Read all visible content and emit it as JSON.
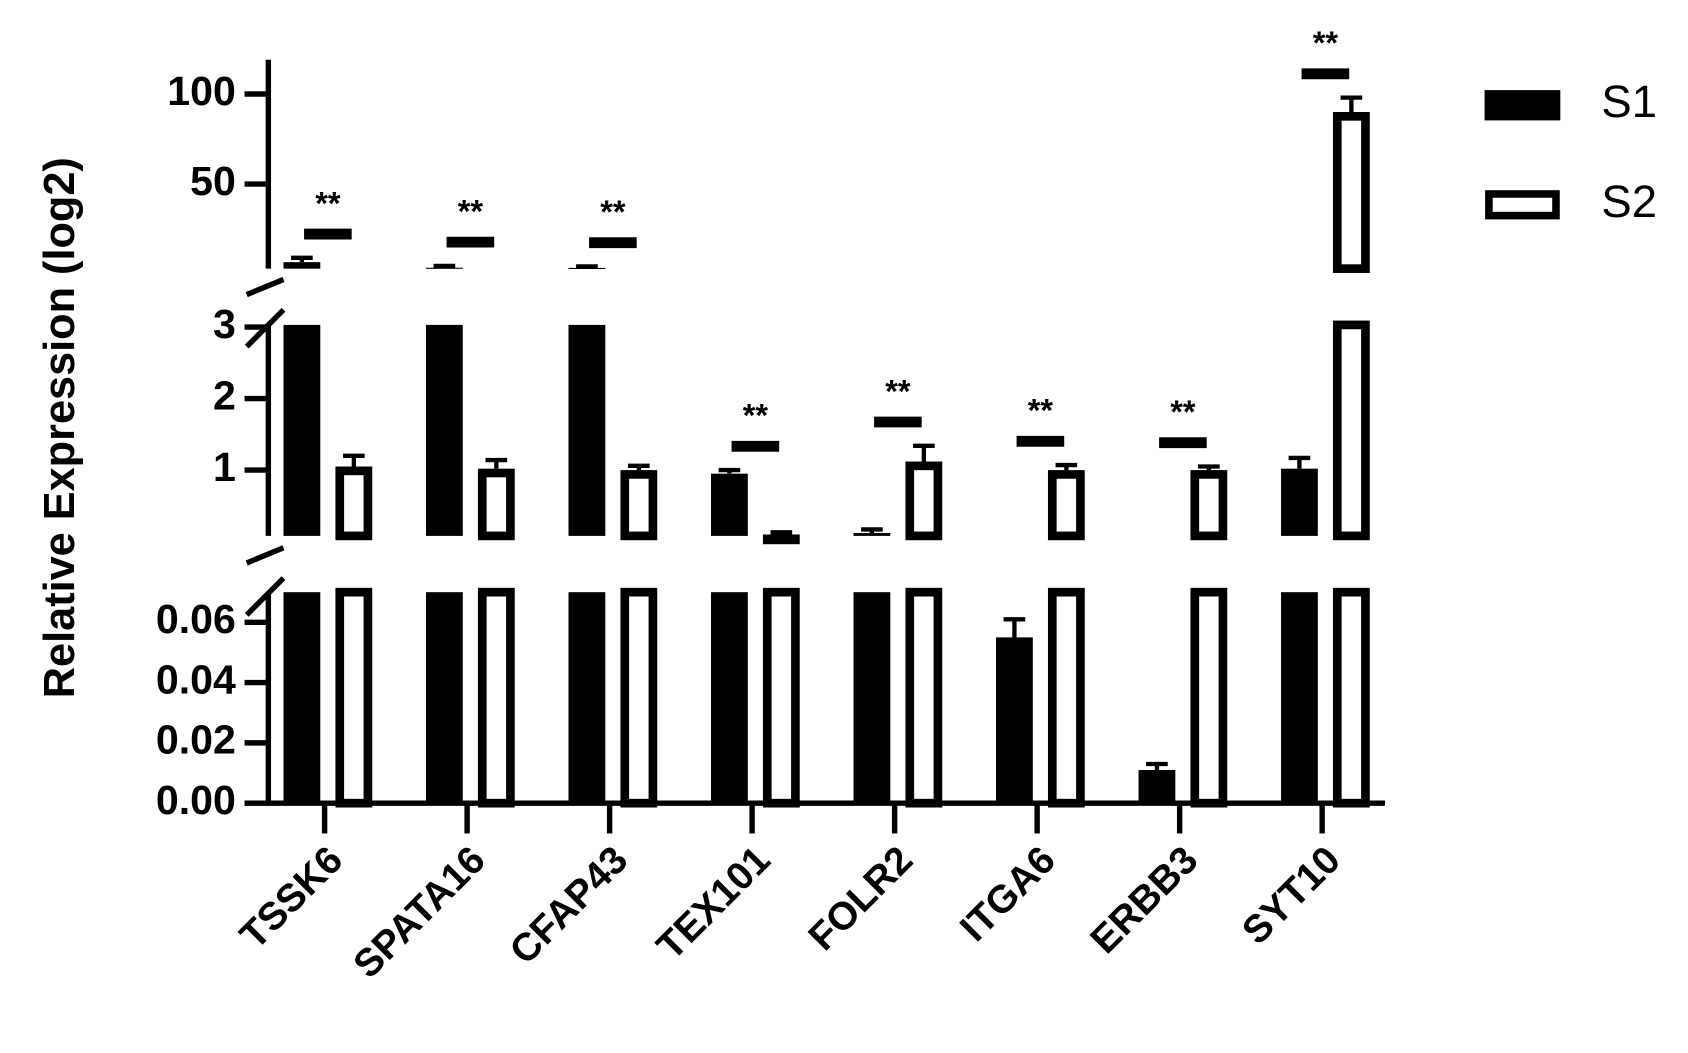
{
  "chart_data": {
    "type": "bar",
    "y_label": "Relative Expression (log2)",
    "categories": [
      "TSSK6",
      "SPATA16",
      "CFAP43",
      "TEX101",
      "FOLR2",
      "ITGA6",
      "ERBB3",
      "SYT10"
    ],
    "series": [
      {
        "name": "S1",
        "color": "#000000",
        "fill": "solid",
        "values": [
          6.6,
          3.5,
          3.4,
          0.95,
          0.12,
          0.055,
          0.011,
          1.02
        ],
        "errors": [
          2.4,
          1.0,
          0.8,
          0.05,
          0.05,
          0.006,
          0.002,
          0.15
        ]
      },
      {
        "name": "S2",
        "color": "#000000",
        "fill": "open",
        "values": [
          1.05,
          1.02,
          1.0,
          0.1,
          1.12,
          1.0,
          1.0,
          90
        ],
        "errors": [
          0.15,
          0.12,
          0.06,
          0.03,
          0.22,
          0.07,
          0.05,
          8
        ]
      }
    ],
    "significance": [
      "**",
      "**",
      "**",
      "**",
      "**",
      "**",
      "**",
      "**"
    ],
    "y_segments": [
      {
        "ylim": [
          0,
          0.07
        ],
        "yticks": [
          {
            "value": 0,
            "label": "0.00"
          },
          0.02,
          0.04,
          0.06
        ]
      },
      {
        "ylim": [
          0.08,
          3.03
        ],
        "yticks": [
          1,
          2,
          3
        ]
      },
      {
        "ylim": [
          3,
          119
        ],
        "yticks": [
          50,
          100
        ]
      }
    ],
    "legend": "upper right"
  }
}
